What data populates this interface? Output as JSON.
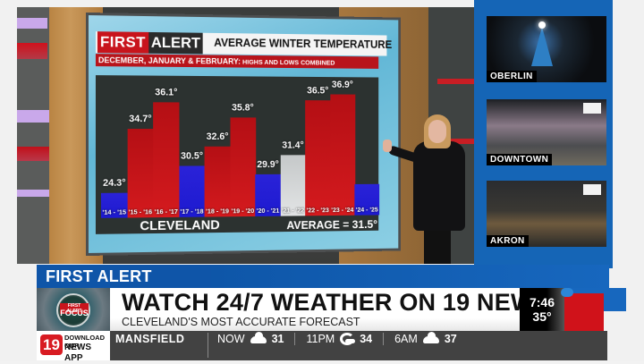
{
  "broadcast": {
    "station": "19 News",
    "segment": "FIRST ALERT FOCUS"
  },
  "graphic": {
    "badge_first": "FIRST",
    "badge_alert": "ALERT",
    "title": "AVERAGE WINTER TEMPERATURE",
    "subtitle_main": "DECEMBER, JANUARY & FEBRUARY:",
    "subtitle_small": " HIGHS AND LOWS COMBINED",
    "city": "CLEVELAND",
    "average_label": "AVERAGE = 31.5°"
  },
  "chart_data": {
    "type": "bar",
    "title": "AVERAGE WINTER TEMPERATURE",
    "subtitle": "DECEMBER, JANUARY & FEBRUARY: HIGHS AND LOWS COMBINED",
    "xlabel": "CLEVELAND",
    "ylabel": "",
    "categories": [
      "'14 - '15",
      "'15 - '16",
      "'16 - '17",
      "'17 - '18",
      "'18 - '19",
      "'19 - '20",
      "'20 - '21",
      "'21 - '22",
      "'22 - '23",
      "'23 - '24",
      "'24 - '25"
    ],
    "values": [
      24.3,
      34.7,
      36.1,
      30.5,
      32.6,
      35.8,
      29.9,
      31.4,
      null,
      null,
      null
    ],
    "value_labels": [
      "24.3°",
      "34.7°",
      "36.1°",
      "30.5°",
      "32.6°",
      "35.8°",
      "29.9°",
      "31.4°",
      "36.5°",
      "36.9°",
      ""
    ],
    "bar_values": [
      24.3,
      34.7,
      36.1,
      30.5,
      32.6,
      35.8,
      29.9,
      31.4,
      36.5,
      36.9,
      null
    ],
    "colors": [
      "blue",
      "red",
      "red",
      "blue",
      "red",
      "red",
      "blue",
      "gray",
      "red",
      "red",
      "blue"
    ],
    "average": 31.5,
    "annotations": [
      "AVERAGE = 31.5°"
    ],
    "grid": false
  },
  "bars": [
    {
      "label": "'14 - '15",
      "value": "24.3°",
      "color": "blue",
      "h": 10
    },
    {
      "label": "'15 - '16",
      "value": "34.7°",
      "color": "red",
      "h": 82
    },
    {
      "label": "'16 - '17",
      "value": "36.1°",
      "color": "red",
      "h": 112
    },
    {
      "label": "'17 - '18",
      "value": "30.5°",
      "color": "blue",
      "h": 40
    },
    {
      "label": "'18 - '19",
      "value": "32.6°",
      "color": "red",
      "h": 62
    },
    {
      "label": "'19 - '20",
      "value": "35.8°",
      "color": "red",
      "h": 95
    },
    {
      "label": "'20 - '21",
      "value": "29.9°",
      "color": "blue",
      "h": 30
    },
    {
      "label": "'21 - '22",
      "value": "31.4°",
      "color": "gray",
      "h": 52
    },
    {
      "label": "'22 - '23",
      "value": "36.5°",
      "color": "red",
      "h": 115
    },
    {
      "label": "'23 - '24",
      "value": "36.9°",
      "color": "red",
      "h": 122
    },
    {
      "label": "'24 - '25",
      "value": "",
      "color": "blue",
      "h": 18
    }
  ],
  "cameras": [
    {
      "label": "OBERLIN"
    },
    {
      "label": "DOWNTOWN"
    },
    {
      "label": "AKRON"
    }
  ],
  "lower_third": {
    "tab": "FIRST ALERT FOCUS",
    "thumb_badge_top": "FIRST ALERT",
    "thumb_badge_main": "FOCUS",
    "headline": "WATCH 24/7 WEATHER ON 19 NEWS+",
    "subline": "CLEVELAND'S MOST ACCURATE FORECAST",
    "time": "7:46",
    "temp": "35°"
  },
  "ticker": {
    "app_number": "19",
    "app_line1": "DOWNLOAD OUR",
    "app_line2": "NEWS APP",
    "city": "MANSFIELD",
    "forecasts": [
      {
        "time": "NOW",
        "icon": "cloudy-icon",
        "temp": "31"
      },
      {
        "time": "11PM",
        "icon": "partly-cloudy-night-icon",
        "temp": "34"
      },
      {
        "time": "6AM",
        "icon": "cloudy-icon",
        "temp": "37"
      }
    ]
  },
  "colors": {
    "brand_blue": "#1565b6",
    "alert_red": "#c8141c",
    "bar_red": "#d41a1e",
    "bar_blue": "#1d1ad0",
    "bar_gray": "#d8dadb",
    "ticker_bg": "#424242"
  }
}
